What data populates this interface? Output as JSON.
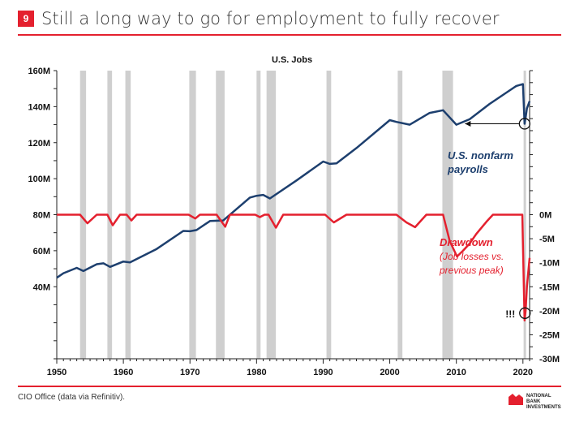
{
  "header": {
    "number": "9",
    "title": "Still a long way to go for employment to fully recover"
  },
  "footer": {
    "source": "CIO Office (data via Refinitiv).",
    "logo_lines": [
      "NATIONAL",
      "BANK",
      "INVESTMENTS"
    ]
  },
  "colors": {
    "accent": "#e4202e",
    "payrolls": "#1d3f6e",
    "drawdown": "#e4202e",
    "recession": "#cfcfcf"
  },
  "chart_data": {
    "type": "line",
    "title": "U.S. Jobs",
    "x_ticks": [
      1950,
      1960,
      1970,
      1980,
      1990,
      2000,
      2010,
      2020
    ],
    "xlim": [
      1950,
      2021
    ],
    "left_axis": {
      "ticks": [
        "160M",
        "140M",
        "120M",
        "100M",
        "80M",
        "60M",
        "40M"
      ],
      "values": [
        160,
        140,
        120,
        100,
        80,
        60,
        40
      ],
      "range": [
        0,
        160
      ]
    },
    "right_axis": {
      "ticks": [
        "0M",
        "-5M",
        "-10M",
        "-15M",
        "-20M",
        "-25M",
        "-30M"
      ],
      "values": [
        0,
        -5,
        -10,
        -15,
        -20,
        -25,
        -30
      ],
      "range": [
        -30,
        30
      ]
    },
    "recessions": [
      [
        1953.5,
        1954.4
      ],
      [
        1957.6,
        1958.3
      ],
      [
        1960.3,
        1961.1
      ],
      [
        1969.9,
        1970.9
      ],
      [
        1973.9,
        1975.2
      ],
      [
        1980.0,
        1980.6
      ],
      [
        1981.5,
        1982.9
      ],
      [
        1990.5,
        1991.2
      ],
      [
        2001.2,
        2001.9
      ],
      [
        2007.9,
        2009.5
      ],
      [
        2020.1,
        2020.4
      ]
    ],
    "series": [
      {
        "name": "U.S. nonfarm payrolls",
        "axis": "left",
        "x": [
          1950,
          1951,
          1953,
          1954,
          1956,
          1957,
          1958,
          1960,
          1961,
          1965,
          1969,
          1970,
          1971,
          1973,
          1975,
          1979,
          1980,
          1981,
          1982,
          1986,
          1990,
          1991,
          1992,
          1995,
          2000,
          2001,
          2003,
          2006,
          2008,
          2010,
          2012,
          2015,
          2019,
          2020.0,
          2020.25,
          2020.4,
          2020.6,
          2021
        ],
        "values": [
          45,
          47.5,
          50.5,
          48.7,
          52.5,
          53,
          51,
          54,
          53.5,
          61,
          71,
          70.8,
          71.5,
          76.5,
          76.8,
          89.5,
          90.5,
          91,
          89,
          99,
          109.5,
          108.2,
          108.5,
          117,
          132.5,
          131.5,
          130,
          136.5,
          138,
          130,
          133,
          141.5,
          151.5,
          152.5,
          130.5,
          134,
          139,
          143
        ]
      },
      {
        "name": "Drawdown",
        "axis": "right",
        "x": [
          1950,
          1953.5,
          1954.6,
          1956,
          1957.6,
          1958.4,
          1959.5,
          1960.5,
          1961.2,
          1962,
          1969.8,
          1970.8,
          1971.5,
          1974,
          1975.3,
          1976,
          1979.8,
          1980.5,
          1981.2,
          1981.8,
          1982.9,
          1984,
          1990.3,
          1991.6,
          1993.5,
          2001,
          2002.5,
          2003.8,
          2005.5,
          2008,
          2009,
          2010.1,
          2011,
          2012,
          2013,
          2014.5,
          2015.5,
          2019.9,
          2020.25,
          2020.4,
          2020.6,
          2021
        ],
        "values": [
          0,
          0,
          -1.8,
          0,
          0,
          -2.2,
          0,
          0,
          -1.2,
          0,
          0,
          -0.8,
          0,
          0,
          -2.5,
          0,
          0,
          -0.5,
          0,
          0,
          -2.7,
          0,
          0,
          -1.6,
          0,
          0,
          -1.6,
          -2.6,
          0,
          0,
          -5.5,
          -8.7,
          -7.5,
          -6,
          -4,
          -1.5,
          0,
          0,
          -22,
          -20,
          -15,
          -9
        ]
      }
    ],
    "annotations": [
      {
        "text": "U.S. nonfarm",
        "text2": "payrolls"
      },
      {
        "text": "Drawdown",
        "text2": "(Job losses vs.",
        "text3": "previous peak)"
      },
      {
        "text": "!!!"
      }
    ]
  }
}
